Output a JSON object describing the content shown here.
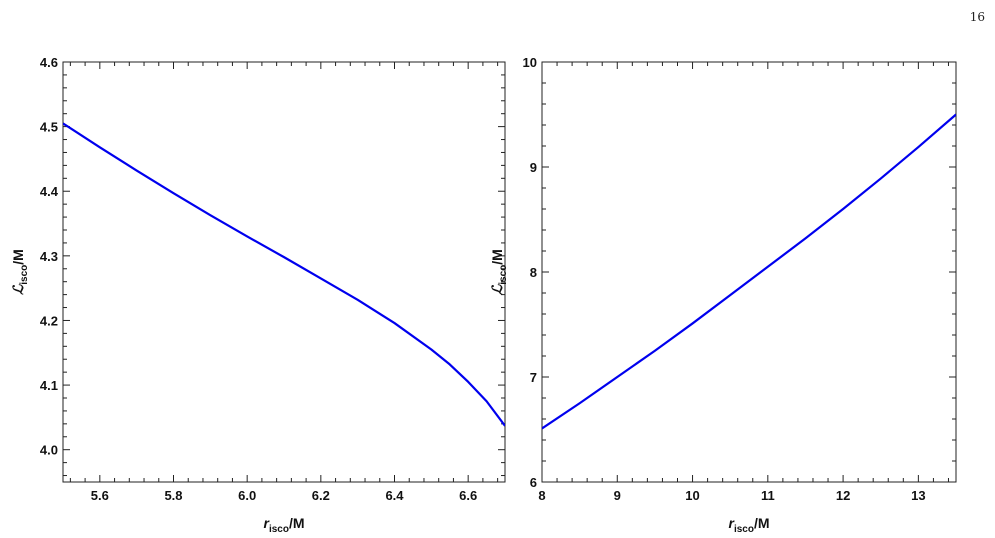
{
  "page": {
    "number": "16"
  },
  "chart_data": [
    {
      "type": "line",
      "title": "",
      "xlabel": {
        "main": "r",
        "sub": "isco",
        "suffix": "/M"
      },
      "ylabel": {
        "main": "ℒ",
        "sub": "isco",
        "suffix": "/M"
      },
      "xlim": [
        5.5,
        6.7
      ],
      "ylim": [
        3.95,
        4.6
      ],
      "xticks": [
        "5.6",
        "5.8",
        "6.0",
        "6.2",
        "6.4",
        "6.6"
      ],
      "yticks": [
        "4.0",
        "4.1",
        "4.2",
        "4.3",
        "4.4",
        "4.5",
        "4.6"
      ],
      "line_color": "#0000ee",
      "series": [
        {
          "x": [
            5.5,
            5.6,
            5.7,
            5.8,
            5.9,
            6.0,
            6.1,
            6.2,
            6.3,
            6.4,
            6.5,
            6.55,
            6.6,
            6.65,
            6.7
          ],
          "y": [
            4.505,
            4.468,
            4.432,
            4.397,
            4.363,
            4.33,
            4.298,
            4.265,
            4.232,
            4.196,
            4.155,
            4.132,
            4.105,
            4.075,
            4.037
          ]
        }
      ]
    },
    {
      "type": "line",
      "title": "",
      "xlabel": {
        "main": "r",
        "sub": "isco",
        "suffix": "/M"
      },
      "ylabel": {
        "main": "ℒ",
        "sub": "isco",
        "suffix": "/M"
      },
      "xlim": [
        8,
        13.5
      ],
      "ylim": [
        6,
        10
      ],
      "xticks": [
        "8",
        "9",
        "10",
        "11",
        "12",
        "13"
      ],
      "yticks": [
        "6",
        "7",
        "8",
        "9",
        "10"
      ],
      "line_color": "#0000ee",
      "series": [
        {
          "x": [
            8,
            8.5,
            9,
            9.5,
            10,
            10.5,
            11,
            11.5,
            12,
            12.5,
            13,
            13.5
          ],
          "y": [
            6.51,
            6.75,
            7.0,
            7.25,
            7.51,
            7.78,
            8.05,
            8.32,
            8.6,
            8.89,
            9.19,
            9.5
          ]
        }
      ]
    }
  ]
}
